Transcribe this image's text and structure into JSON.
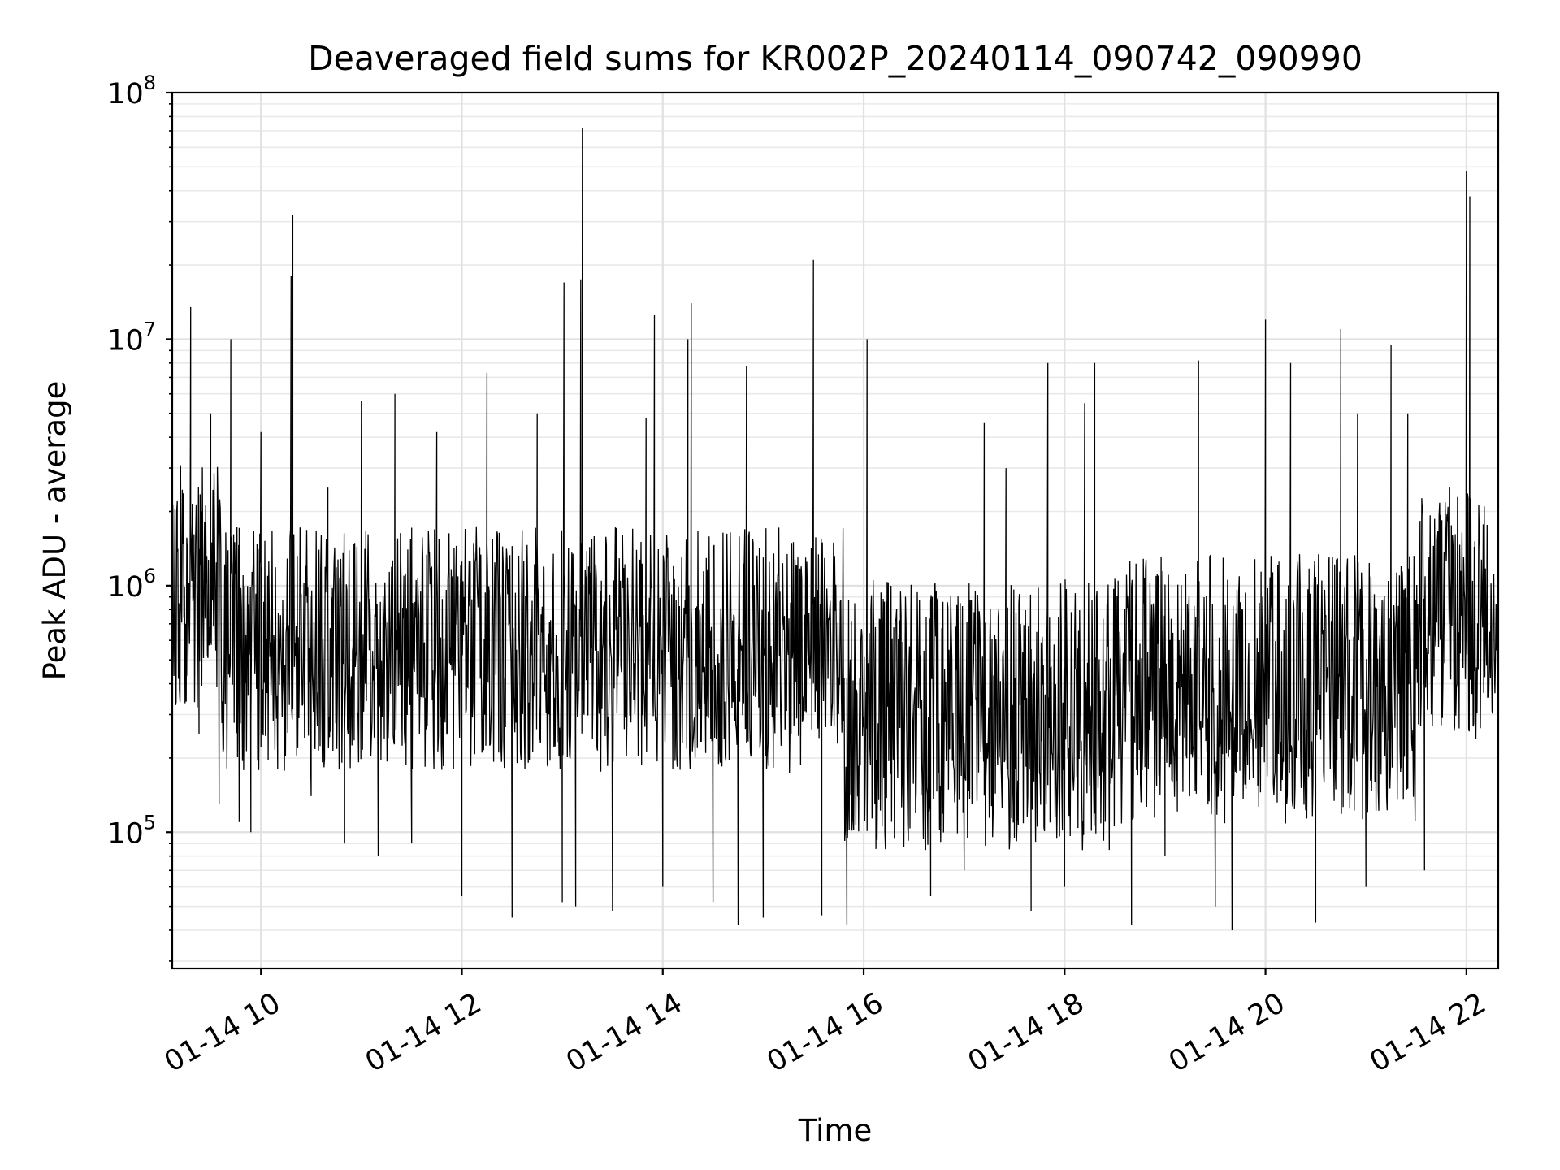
{
  "chart_data": {
    "type": "line",
    "title": "Deaveraged field sums for KR002P_20240114_090742_090990",
    "xlabel": "Time",
    "ylabel": "Peak ADU - average",
    "yscale": "log",
    "ylim": [
      28000,
      100000000
    ],
    "xlim": [
      "2024-01-14 09:07",
      "2024-01-14 22:19"
    ],
    "grid": "major and minor",
    "line_color": "#000000",
    "x_ticks": [
      "01-14 10",
      "01-14 12",
      "01-14 14",
      "01-14 16",
      "01-14 18",
      "01-14 20",
      "01-14 22"
    ],
    "y_ticks": [
      {
        "base": "10",
        "exp": "5"
      },
      {
        "base": "10",
        "exp": "6"
      },
      {
        "base": "10",
        "exp": "7"
      },
      {
        "base": "10",
        "exp": "8"
      }
    ],
    "series": [
      {
        "points": [
          [
            "2024-01-14 09:07",
            350000
          ],
          [
            "2024-01-14 09:10",
            2200000
          ],
          [
            "2024-01-14 09:15",
            700000
          ],
          [
            "2024-01-14 09:18",
            13500000
          ],
          [
            "2024-01-14 09:20",
            1400000
          ],
          [
            "2024-01-14 09:23",
            250000
          ],
          [
            "2024-01-14 09:30",
            5000000
          ],
          [
            "2024-01-14 09:35",
            130000
          ],
          [
            "2024-01-14 09:42",
            10000000
          ],
          [
            "2024-01-14 09:47",
            110000
          ],
          [
            "2024-01-14 09:54",
            100000
          ],
          [
            "2024-01-14 10:00",
            4200000
          ],
          [
            "2024-01-14 10:10",
            180000
          ],
          [
            "2024-01-14 10:18",
            18000000
          ],
          [
            "2024-01-14 10:19",
            32000000
          ],
          [
            "2024-01-14 10:24",
            600000
          ],
          [
            "2024-01-14 10:30",
            140000
          ],
          [
            "2024-01-14 10:40",
            2500000
          ],
          [
            "2024-01-14 10:50",
            90000
          ],
          [
            "2024-01-14 11:00",
            5600000
          ],
          [
            "2024-01-14 11:10",
            80000
          ],
          [
            "2024-01-14 11:20",
            6000000
          ],
          [
            "2024-01-14 11:30",
            90000
          ],
          [
            "2024-01-14 11:45",
            4200000
          ],
          [
            "2024-01-14 12:00",
            55000
          ],
          [
            "2024-01-14 12:15",
            7300000
          ],
          [
            "2024-01-14 12:30",
            45000
          ],
          [
            "2024-01-14 12:45",
            5000000
          ],
          [
            "2024-01-14 13:00",
            52000
          ],
          [
            "2024-01-14 13:01",
            17000000
          ],
          [
            "2024-01-14 13:08",
            50000
          ],
          [
            "2024-01-14 13:11",
            17500000
          ],
          [
            "2024-01-14 13:12",
            72000000
          ],
          [
            "2024-01-14 13:14",
            1000000
          ],
          [
            "2024-01-14 13:30",
            48000
          ],
          [
            "2024-01-14 13:50",
            4800000
          ],
          [
            "2024-01-14 13:55",
            12500000
          ],
          [
            "2024-01-14 14:00",
            60000
          ],
          [
            "2024-01-14 14:15",
            10000000
          ],
          [
            "2024-01-14 14:17",
            14000000
          ],
          [
            "2024-01-14 14:30",
            52000
          ],
          [
            "2024-01-14 14:45",
            42000
          ],
          [
            "2024-01-14 14:50",
            7800000
          ],
          [
            "2024-01-14 15:00",
            45000
          ],
          [
            "2024-01-14 15:20",
            1200000
          ],
          [
            "2024-01-14 15:30",
            21000000
          ],
          [
            "2024-01-14 15:35",
            46000
          ],
          [
            "2024-01-14 15:50",
            42000
          ],
          [
            "2024-01-14 16:02",
            10000000
          ],
          [
            "2024-01-14 16:10",
            200000
          ],
          [
            "2024-01-14 16:40",
            55000
          ],
          [
            "2024-01-14 17:00",
            70000
          ],
          [
            "2024-01-14 17:12",
            4600000
          ],
          [
            "2024-01-14 17:25",
            3000000
          ],
          [
            "2024-01-14 17:40",
            48000
          ],
          [
            "2024-01-14 17:50",
            8000000
          ],
          [
            "2024-01-14 18:00",
            60000
          ],
          [
            "2024-01-14 18:12",
            5500000
          ],
          [
            "2024-01-14 18:18",
            8000000
          ],
          [
            "2024-01-14 18:40",
            42000
          ],
          [
            "2024-01-14 19:00",
            80000
          ],
          [
            "2024-01-14 19:20",
            8200000
          ],
          [
            "2024-01-14 19:30",
            50000
          ],
          [
            "2024-01-14 19:40",
            40000
          ],
          [
            "2024-01-14 19:57",
            150000
          ],
          [
            "2024-01-14 20:00",
            12000000
          ],
          [
            "2024-01-14 20:15",
            8000000
          ],
          [
            "2024-01-14 20:30",
            43000
          ],
          [
            "2024-01-14 20:45",
            11000000
          ],
          [
            "2024-01-14 20:55",
            5000000
          ],
          [
            "2024-01-14 21:00",
            60000
          ],
          [
            "2024-01-14 21:15",
            9500000
          ],
          [
            "2024-01-14 21:25",
            5000000
          ],
          [
            "2024-01-14 21:35",
            70000
          ],
          [
            "2024-01-14 21:50",
            2500000
          ],
          [
            "2024-01-14 22:00",
            48000000
          ],
          [
            "2024-01-14 22:02",
            38000000
          ],
          [
            "2024-01-14 22:05",
            450000
          ],
          [
            "2024-01-14 22:15",
            700000
          ],
          [
            "2024-01-14 22:19",
            600000
          ]
        ]
      }
    ]
  }
}
